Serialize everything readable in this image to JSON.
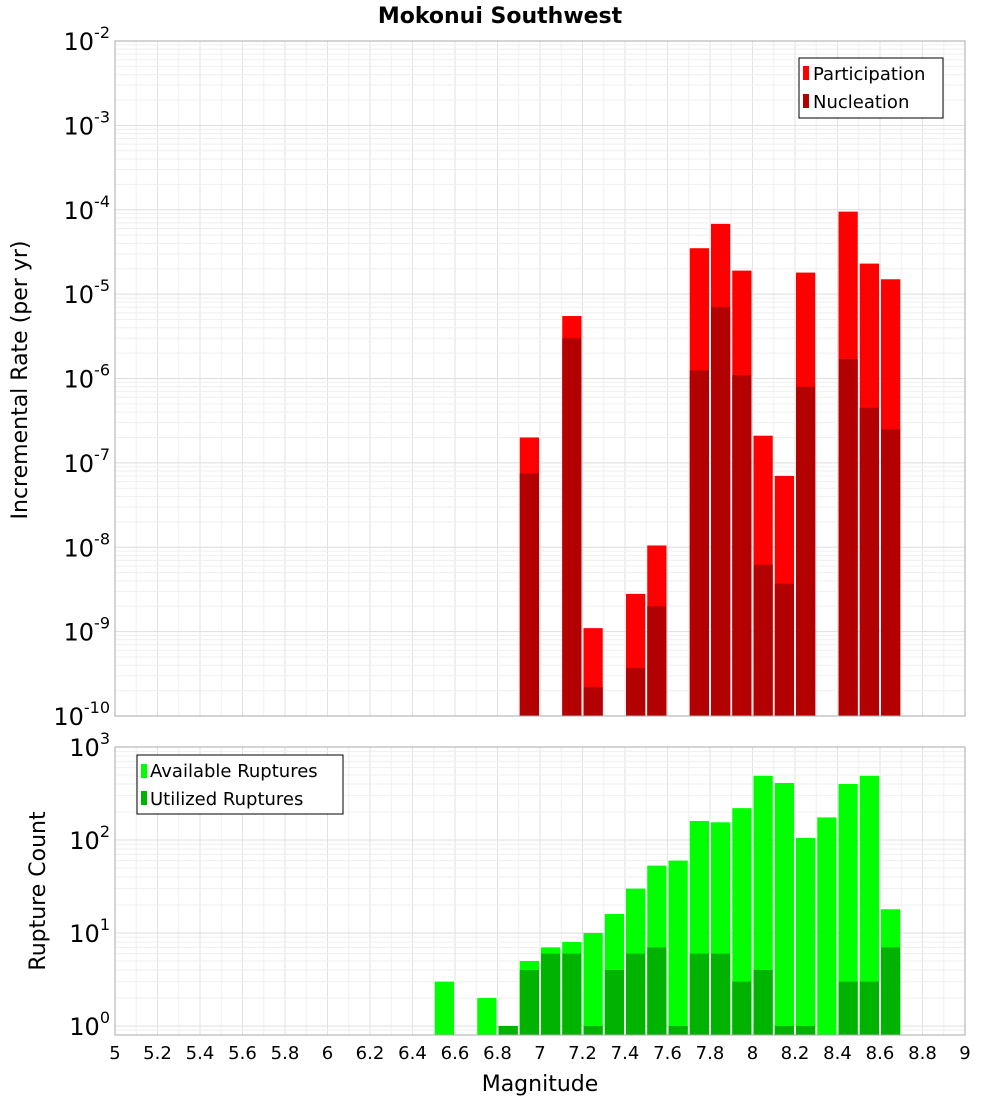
{
  "chart_data": [
    {
      "type": "bar",
      "title": "Mokonui Southwest",
      "ylabel": "Incremental Rate (per yr)",
      "xlabel": "",
      "ylog": true,
      "ylim": [
        1e-10,
        0.01
      ],
      "xlim": [
        5,
        9
      ],
      "grid": true,
      "legend_position": "top-right",
      "bin_width": 0.1,
      "series": [
        {
          "name": "Participation",
          "color": "#ff0000",
          "x": [
            6.95,
            7.15,
            7.25,
            7.45,
            7.55,
            7.75,
            7.85,
            7.95,
            8.05,
            8.15,
            8.25,
            8.45,
            8.55,
            8.65
          ],
          "values": [
            2e-07,
            5.5e-06,
            1.1e-09,
            2.8e-09,
            1.05e-08,
            3.5e-05,
            6.8e-05,
            1.9e-05,
            2.1e-07,
            7e-08,
            1.8e-05,
            9.5e-05,
            2.3e-05,
            1.5e-05
          ]
        },
        {
          "name": "Nucleation",
          "color": "#b30000",
          "x": [
            6.95,
            7.15,
            7.25,
            7.45,
            7.55,
            7.75,
            7.85,
            7.95,
            8.05,
            8.15,
            8.25,
            8.45,
            8.55,
            8.65
          ],
          "values": [
            7.5e-08,
            3e-06,
            2.2e-10,
            3.7e-10,
            2e-09,
            1.25e-06,
            7e-06,
            1.1e-06,
            6.2e-09,
            3.7e-09,
            8e-07,
            1.7e-06,
            4.5e-07,
            2.5e-07
          ]
        }
      ]
    },
    {
      "type": "bar",
      "title": "",
      "ylabel": "Rupture Count",
      "xlabel": "Magnitude",
      "ylog": true,
      "ylim": [
        0.8,
        1000
      ],
      "xlim": [
        5,
        9
      ],
      "grid": true,
      "legend_position": "top-left",
      "bin_width": 0.1,
      "x_ticks": [
        "5",
        "5.2",
        "5.4",
        "5.6",
        "5.8",
        "6",
        "6.2",
        "6.4",
        "6.6",
        "6.8",
        "7",
        "7.2",
        "7.4",
        "7.6",
        "7.8",
        "8",
        "8.2",
        "8.4",
        "8.6",
        "8.8",
        "9"
      ],
      "series": [
        {
          "name": "Available Ruptures",
          "color": "#00ff00",
          "x": [
            6.55,
            6.75,
            6.85,
            6.95,
            7.05,
            7.15,
            7.25,
            7.35,
            7.45,
            7.55,
            7.65,
            7.75,
            7.85,
            7.95,
            8.05,
            8.15,
            8.25,
            8.35,
            8.45,
            8.55,
            8.65
          ],
          "values": [
            3,
            2,
            1,
            5,
            7,
            8,
            10,
            16,
            30,
            53,
            60,
            160,
            155,
            220,
            490,
            410,
            105,
            175,
            400,
            490,
            18
          ]
        },
        {
          "name": "Utilized Ruptures",
          "color": "#00b300",
          "x": [
            6.85,
            6.95,
            7.05,
            7.15,
            7.25,
            7.35,
            7.45,
            7.55,
            7.65,
            7.75,
            7.85,
            7.95,
            8.05,
            8.15,
            8.25,
            8.45,
            8.55,
            8.65
          ],
          "values": [
            1,
            4,
            6,
            6,
            1,
            4,
            6,
            7,
            1,
            6,
            6,
            3,
            4,
            1,
            1,
            3,
            3,
            7
          ]
        }
      ]
    }
  ]
}
